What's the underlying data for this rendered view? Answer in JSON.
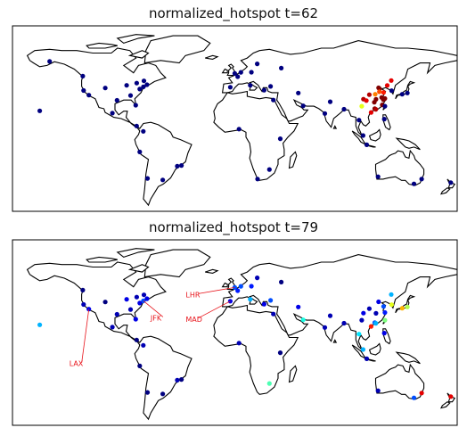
{
  "panels": [
    {
      "title": "normalized_hotspot t=62",
      "points": [
        {
          "lon": -122.4,
          "lat": 37.7,
          "v": 0.0
        },
        {
          "lon": -118.2,
          "lat": 34.0,
          "v": 0.0
        },
        {
          "lon": -104.9,
          "lat": 39.7,
          "v": 0.0
        },
        {
          "lon": -95.4,
          "lat": 29.8,
          "v": 0.0
        },
        {
          "lon": -87.6,
          "lat": 41.9,
          "v": 0.0
        },
        {
          "lon": -84.4,
          "lat": 33.7,
          "v": 0.0
        },
        {
          "lon": -80.2,
          "lat": 25.8,
          "v": 0.0
        },
        {
          "lon": -74.0,
          "lat": 40.7,
          "v": 0.0
        },
        {
          "lon": -77.0,
          "lat": 38.9,
          "v": 0.0
        },
        {
          "lon": -71.1,
          "lat": 42.4,
          "v": 0.0
        },
        {
          "lon": -79.4,
          "lat": 43.7,
          "v": 0.0
        },
        {
          "lon": -73.6,
          "lat": 45.5,
          "v": 0.0
        },
        {
          "lon": -123.1,
          "lat": 49.3,
          "v": 0.0
        },
        {
          "lon": -99.1,
          "lat": 19.4,
          "v": 0.0
        },
        {
          "lon": -157.9,
          "lat": 21.3,
          "v": 0.0
        },
        {
          "lon": -149.9,
          "lat": 61.2,
          "v": 0.0
        },
        {
          "lon": -79.5,
          "lat": 9.0,
          "v": 0.0
        },
        {
          "lon": -74.1,
          "lat": 4.7,
          "v": 0.0
        },
        {
          "lon": -77.0,
          "lat": -12.0,
          "v": 0.0
        },
        {
          "lon": -46.6,
          "lat": -23.5,
          "v": 0.0
        },
        {
          "lon": -43.2,
          "lat": -22.9,
          "v": 0.0
        },
        {
          "lon": -58.4,
          "lat": -34.6,
          "v": 0.0
        },
        {
          "lon": -70.7,
          "lat": -33.4,
          "v": 0.0
        },
        {
          "lon": -0.1,
          "lat": 51.5,
          "v": 0.0
        },
        {
          "lon": 2.3,
          "lat": 48.9,
          "v": 0.0
        },
        {
          "lon": -3.7,
          "lat": 40.4,
          "v": 0.0
        },
        {
          "lon": 12.5,
          "lat": 41.9,
          "v": 0.0
        },
        {
          "lon": 13.4,
          "lat": 52.5,
          "v": 0.0
        },
        {
          "lon": 4.9,
          "lat": 52.4,
          "v": 0.0
        },
        {
          "lon": 18.1,
          "lat": 59.3,
          "v": 0.0
        },
        {
          "lon": 37.6,
          "lat": 55.8,
          "v": 0.0
        },
        {
          "lon": 28.9,
          "lat": 41.0,
          "v": 0.0
        },
        {
          "lon": 23.7,
          "lat": 38.0,
          "v": 0.0
        },
        {
          "lon": 31.2,
          "lat": 30.0,
          "v": 0.0
        },
        {
          "lon": 55.3,
          "lat": 25.3,
          "v": 0.0
        },
        {
          "lon": 51.4,
          "lat": 35.7,
          "v": 0.0
        },
        {
          "lon": 72.9,
          "lat": 19.1,
          "v": 0.0
        },
        {
          "lon": 77.2,
          "lat": 28.6,
          "v": 0.0
        },
        {
          "lon": 88.4,
          "lat": 22.6,
          "v": 0.0
        },
        {
          "lon": 100.5,
          "lat": 13.8,
          "v": 0.0
        },
        {
          "lon": 103.8,
          "lat": 1.3,
          "v": 0.0
        },
        {
          "lon": 106.8,
          "lat": -6.2,
          "v": 0.0
        },
        {
          "lon": 121.0,
          "lat": 14.6,
          "v": 0.0
        },
        {
          "lon": 151.2,
          "lat": -33.9,
          "v": 0.0
        },
        {
          "lon": 145.0,
          "lat": -37.8,
          "v": 0.0
        },
        {
          "lon": 115.9,
          "lat": -32.0,
          "v": 0.0
        },
        {
          "lon": 174.8,
          "lat": -36.8,
          "v": 0.0
        },
        {
          "lon": 18.4,
          "lat": -33.9,
          "v": 0.0
        },
        {
          "lon": 28.0,
          "lat": -26.2,
          "v": 0.0
        },
        {
          "lon": 36.8,
          "lat": -1.3,
          "v": 0.0
        },
        {
          "lon": 3.4,
          "lat": 6.5,
          "v": 0.0
        },
        {
          "lon": 116.4,
          "lat": 39.9,
          "v": 1.0
        },
        {
          "lon": 121.5,
          "lat": 31.2,
          "v": 1.0
        },
        {
          "lon": 113.3,
          "lat": 23.1,
          "v": 1.0
        },
        {
          "lon": 114.1,
          "lat": 22.5,
          "v": 0.95
        },
        {
          "lon": 114.3,
          "lat": 30.6,
          "v": 1.0
        },
        {
          "lon": 104.1,
          "lat": 30.7,
          "v": 0.95
        },
        {
          "lon": 108.9,
          "lat": 34.3,
          "v": 0.95
        },
        {
          "lon": 117.2,
          "lat": 39.1,
          "v": 1.0
        },
        {
          "lon": 120.2,
          "lat": 30.3,
          "v": 1.0
        },
        {
          "lon": 118.8,
          "lat": 32.1,
          "v": 1.0
        },
        {
          "lon": 106.5,
          "lat": 29.6,
          "v": 0.9
        },
        {
          "lon": 112.9,
          "lat": 28.2,
          "v": 1.0
        },
        {
          "lon": 126.6,
          "lat": 45.8,
          "v": 0.9
        },
        {
          "lon": 123.4,
          "lat": 41.8,
          "v": 0.9
        },
        {
          "lon": 120.4,
          "lat": 36.1,
          "v": 0.85
        },
        {
          "lon": 119.3,
          "lat": 26.1,
          "v": 1.0
        },
        {
          "lon": 117.0,
          "lat": 36.7,
          "v": 0.8
        },
        {
          "lon": 113.6,
          "lat": 34.7,
          "v": 0.75
        },
        {
          "lon": 102.7,
          "lat": 25.0,
          "v": 0.6
        },
        {
          "lon": 110.3,
          "lat": 20.0,
          "v": 0.9
        },
        {
          "lon": 126.9,
          "lat": 37.6,
          "v": 0.0
        },
        {
          "lon": 139.7,
          "lat": 35.7,
          "v": 0.0
        },
        {
          "lon": 135.5,
          "lat": 34.7,
          "v": 0.0
        },
        {
          "lon": 121.5,
          "lat": 25.0,
          "v": 0.0
        }
      ]
    },
    {
      "title": "normalized_hotspot t=79",
      "points": [
        {
          "lon": -122.4,
          "lat": 37.7,
          "v": 0.05
        },
        {
          "lon": -118.2,
          "lat": 34.0,
          "v": 0.1
        },
        {
          "lon": -104.9,
          "lat": 39.7,
          "v": 0.0
        },
        {
          "lon": -95.4,
          "lat": 29.8,
          "v": 0.05
        },
        {
          "lon": -87.6,
          "lat": 41.9,
          "v": 0.1
        },
        {
          "lon": -84.4,
          "lat": 33.7,
          "v": 0.05
        },
        {
          "lon": -80.2,
          "lat": 25.8,
          "v": 0.1
        },
        {
          "lon": -74.0,
          "lat": 40.7,
          "v": 0.2
        },
        {
          "lon": -77.0,
          "lat": 38.9,
          "v": 0.1
        },
        {
          "lon": -71.1,
          "lat": 42.4,
          "v": 0.1
        },
        {
          "lon": -79.4,
          "lat": 43.7,
          "v": 0.05
        },
        {
          "lon": -73.6,
          "lat": 45.5,
          "v": 0.05
        },
        {
          "lon": -123.1,
          "lat": 49.3,
          "v": 0.0
        },
        {
          "lon": -99.1,
          "lat": 19.4,
          "v": 0.05
        },
        {
          "lon": -157.9,
          "lat": 21.3,
          "v": 0.3
        },
        {
          "lon": -79.5,
          "lat": 9.0,
          "v": 0.0
        },
        {
          "lon": -74.1,
          "lat": 4.7,
          "v": 0.05
        },
        {
          "lon": -77.0,
          "lat": -12.0,
          "v": 0.0
        },
        {
          "lon": -46.6,
          "lat": -23.5,
          "v": 0.05
        },
        {
          "lon": -43.2,
          "lat": -22.9,
          "v": 0.0
        },
        {
          "lon": -58.4,
          "lat": -34.6,
          "v": 0.0
        },
        {
          "lon": -70.7,
          "lat": -33.4,
          "v": 0.0
        },
        {
          "lon": -0.1,
          "lat": 51.5,
          "v": 0.2
        },
        {
          "lon": 2.3,
          "lat": 48.9,
          "v": 0.15
        },
        {
          "lon": -3.7,
          "lat": 40.4,
          "v": 0.1
        },
        {
          "lon": 12.5,
          "lat": 41.9,
          "v": 0.3
        },
        {
          "lon": 13.4,
          "lat": 52.5,
          "v": 0.15
        },
        {
          "lon": 4.9,
          "lat": 52.4,
          "v": 0.2
        },
        {
          "lon": 18.1,
          "lat": 59.3,
          "v": 0.05
        },
        {
          "lon": 37.6,
          "lat": 55.8,
          "v": 0.0
        },
        {
          "lon": 28.9,
          "lat": 41.0,
          "v": 0.2
        },
        {
          "lon": 23.7,
          "lat": 38.0,
          "v": 0.1
        },
        {
          "lon": 31.2,
          "lat": 30.0,
          "v": 0.05
        },
        {
          "lon": 55.3,
          "lat": 25.3,
          "v": 0.4
        },
        {
          "lon": 51.4,
          "lat": 35.7,
          "v": 0.1
        },
        {
          "lon": 72.9,
          "lat": 19.1,
          "v": 0.05
        },
        {
          "lon": 77.2,
          "lat": 28.6,
          "v": 0.05
        },
        {
          "lon": 88.4,
          "lat": 22.6,
          "v": 0.05
        },
        {
          "lon": 100.5,
          "lat": 13.8,
          "v": 0.35
        },
        {
          "lon": 103.8,
          "lat": 1.3,
          "v": 0.3
        },
        {
          "lon": 106.8,
          "lat": -6.2,
          "v": 0.05
        },
        {
          "lon": 121.0,
          "lat": 14.6,
          "v": 0.1
        },
        {
          "lon": 151.2,
          "lat": -33.9,
          "v": 0.9
        },
        {
          "lon": 145.0,
          "lat": -37.8,
          "v": 0.2
        },
        {
          "lon": 115.9,
          "lat": -32.0,
          "v": 0.05
        },
        {
          "lon": 174.8,
          "lat": -36.8,
          "v": 0.9
        },
        {
          "lon": 28.0,
          "lat": -26.2,
          "v": 0.45
        },
        {
          "lon": 36.8,
          "lat": -1.3,
          "v": 0.0
        },
        {
          "lon": 3.4,
          "lat": 6.5,
          "v": 0.05
        },
        {
          "lon": 116.4,
          "lat": 39.9,
          "v": 0.1
        },
        {
          "lon": 121.5,
          "lat": 31.2,
          "v": 0.15
        },
        {
          "lon": 113.3,
          "lat": 23.1,
          "v": 0.2
        },
        {
          "lon": 114.1,
          "lat": 22.5,
          "v": 0.3
        },
        {
          "lon": 114.3,
          "lat": 30.6,
          "v": 0.05
        },
        {
          "lon": 104.1,
          "lat": 30.7,
          "v": 0.1
        },
        {
          "lon": 108.9,
          "lat": 34.3,
          "v": 0.05
        },
        {
          "lon": 126.6,
          "lat": 45.8,
          "v": 0.3
        },
        {
          "lon": 120.4,
          "lat": 36.1,
          "v": 0.2
        },
        {
          "lon": 110.3,
          "lat": 20.0,
          "v": 0.85
        },
        {
          "lon": 102.7,
          "lat": 25.0,
          "v": 0.05
        },
        {
          "lon": 126.9,
          "lat": 37.6,
          "v": 0.6
        },
        {
          "lon": 139.7,
          "lat": 35.7,
          "v": 0.55
        },
        {
          "lon": 135.5,
          "lat": 34.7,
          "v": 0.7
        },
        {
          "lon": 121.5,
          "lat": 25.0,
          "v": 0.5
        }
      ],
      "callouts": [
        {
          "label": "LHR",
          "lon": -0.1,
          "lat": 51.5
        },
        {
          "label": "MAD",
          "lon": -3.7,
          "lat": 40.4
        },
        {
          "label": "JFK",
          "lon": -74.0,
          "lat": 40.7
        },
        {
          "label": "LAX",
          "lon": -118.2,
          "lat": 34.0
        }
      ]
    }
  ],
  "colors": {
    "callout": "#e8141b",
    "colormap": "jet"
  }
}
